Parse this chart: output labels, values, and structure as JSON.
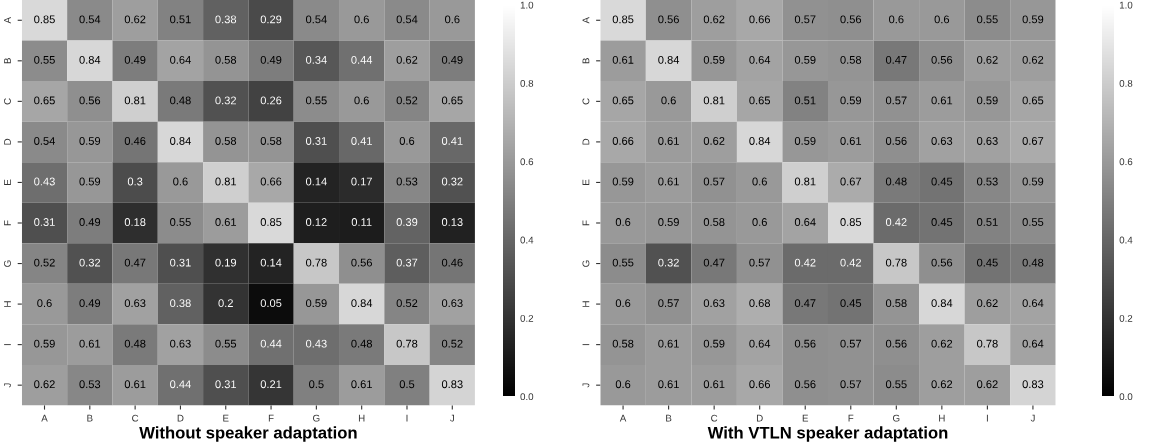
{
  "chart_data": [
    {
      "type": "heatmap",
      "xlabel": "Without speaker adaptation",
      "categories": [
        "A",
        "B",
        "C",
        "D",
        "E",
        "F",
        "G",
        "H",
        "I",
        "J"
      ],
      "y_categories": [
        "A",
        "B",
        "C",
        "D",
        "E",
        "F",
        "G",
        "H",
        "I",
        "J"
      ],
      "cells": [
        [
          0.85,
          0.54,
          0.62,
          0.51,
          0.38,
          0.29,
          0.54,
          0.6,
          0.54,
          0.6
        ],
        [
          0.55,
          0.84,
          0.49,
          0.64,
          0.58,
          0.49,
          0.34,
          0.44,
          0.62,
          0.49
        ],
        [
          0.65,
          0.56,
          0.81,
          0.48,
          0.32,
          0.26,
          0.55,
          0.6,
          0.52,
          0.65
        ],
        [
          0.54,
          0.59,
          0.46,
          0.84,
          0.58,
          0.58,
          0.31,
          0.41,
          0.6,
          0.41
        ],
        [
          0.43,
          0.59,
          0.3,
          0.6,
          0.81,
          0.66,
          0.14,
          0.17,
          0.53,
          0.32
        ],
        [
          0.31,
          0.49,
          0.18,
          0.55,
          0.61,
          0.85,
          0.12,
          0.11,
          0.39,
          0.13
        ],
        [
          0.52,
          0.32,
          0.47,
          0.31,
          0.19,
          0.14,
          0.78,
          0.56,
          0.37,
          0.46
        ],
        [
          0.6,
          0.49,
          0.63,
          0.38,
          0.2,
          0.05,
          0.59,
          0.84,
          0.52,
          0.63
        ],
        [
          0.59,
          0.61,
          0.48,
          0.63,
          0.55,
          0.44,
          0.43,
          0.48,
          0.78,
          0.52
        ],
        [
          0.62,
          0.53,
          0.61,
          0.44,
          0.31,
          0.21,
          0.5,
          0.61,
          0.5,
          0.83
        ]
      ],
      "clim": [
        0,
        1
      ],
      "cticks": [
        {
          "value": 0,
          "label": "0.0"
        },
        {
          "value": 0.2,
          "label": "0.2"
        },
        {
          "value": 0.4,
          "label": "0.4"
        },
        {
          "value": 0.6,
          "label": "0.6"
        },
        {
          "value": 0.8,
          "label": "0.8"
        },
        {
          "value": 1,
          "label": "1.0"
        }
      ],
      "data_labels": true
    },
    {
      "type": "heatmap",
      "xlabel": "With VTLN speaker adaptation",
      "categories": [
        "A",
        "B",
        "C",
        "D",
        "E",
        "F",
        "G",
        "H",
        "I",
        "J"
      ],
      "y_categories": [
        "A",
        "B",
        "C",
        "D",
        "E",
        "F",
        "G",
        "H",
        "I",
        "J"
      ],
      "cells": [
        [
          0.85,
          0.56,
          0.62,
          0.66,
          0.57,
          0.56,
          0.6,
          0.6,
          0.55,
          0.59
        ],
        [
          0.61,
          0.84,
          0.59,
          0.64,
          0.59,
          0.58,
          0.47,
          0.56,
          0.62,
          0.62
        ],
        [
          0.65,
          0.6,
          0.81,
          0.65,
          0.51,
          0.59,
          0.57,
          0.61,
          0.59,
          0.65
        ],
        [
          0.66,
          0.61,
          0.62,
          0.84,
          0.59,
          0.61,
          0.56,
          0.63,
          0.63,
          0.67
        ],
        [
          0.59,
          0.61,
          0.57,
          0.6,
          0.81,
          0.67,
          0.48,
          0.45,
          0.53,
          0.59
        ],
        [
          0.6,
          0.59,
          0.58,
          0.6,
          0.64,
          0.85,
          0.42,
          0.45,
          0.51,
          0.55
        ],
        [
          0.55,
          0.32,
          0.47,
          0.57,
          0.42,
          0.42,
          0.78,
          0.56,
          0.45,
          0.48
        ],
        [
          0.6,
          0.57,
          0.63,
          0.68,
          0.47,
          0.45,
          0.58,
          0.84,
          0.62,
          0.64
        ],
        [
          0.58,
          0.61,
          0.59,
          0.64,
          0.56,
          0.57,
          0.56,
          0.62,
          0.78,
          0.64
        ],
        [
          0.6,
          0.61,
          0.61,
          0.66,
          0.56,
          0.57,
          0.55,
          0.62,
          0.62,
          0.83
        ]
      ],
      "clim": [
        0,
        1
      ],
      "cticks": [
        {
          "value": 0,
          "label": "0.0"
        },
        {
          "value": 0.2,
          "label": "0.2"
        },
        {
          "value": 0.4,
          "label": "0.4"
        },
        {
          "value": 0.6,
          "label": "0.6"
        },
        {
          "value": 0.8,
          "label": "0.8"
        },
        {
          "value": 1,
          "label": "1.0"
        }
      ],
      "data_labels": true
    }
  ]
}
